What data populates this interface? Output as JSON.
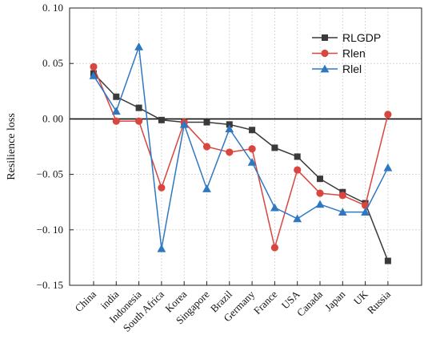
{
  "chart_data": {
    "type": "line",
    "ylabel": "Resilience loss",
    "xlabel": "",
    "ylim": [
      -0.15,
      0.1
    ],
    "yticks": [
      0.1,
      0.05,
      0.0,
      -0.05,
      -0.1,
      -0.15
    ],
    "ytick_labels": [
      "0. 10",
      "0. 05",
      "0. 00",
      "−0. 05",
      "−0. 10",
      "−0. 15"
    ],
    "grid": true,
    "zero_line": true,
    "legend_position": "top-right",
    "categories": [
      "China",
      "india",
      "Indonesia",
      "South Africa",
      "Korea",
      "Singapore",
      "Brazil",
      "Germany",
      "France",
      "USA",
      "Canada",
      "Japan",
      "UK",
      "Russia"
    ],
    "series": [
      {
        "name": "RLGDP",
        "color": "#3a3a3a",
        "marker": "square",
        "values": [
          0.041,
          0.02,
          0.01,
          -0.001,
          -0.003,
          -0.003,
          -0.005,
          -0.01,
          -0.026,
          -0.034,
          -0.054,
          -0.066,
          -0.076,
          -0.128
        ]
      },
      {
        "name": "Rlen",
        "color": "#d9453f",
        "marker": "circle",
        "values": [
          0.047,
          -0.002,
          -0.002,
          -0.062,
          -0.003,
          -0.025,
          -0.03,
          -0.027,
          -0.116,
          -0.046,
          -0.067,
          -0.069,
          -0.078,
          0.004
        ]
      },
      {
        "name": "Rlel",
        "color": "#2e78c2",
        "marker": "triangle",
        "values": [
          0.039,
          0.007,
          0.065,
          -0.117,
          -0.005,
          -0.063,
          -0.009,
          -0.039,
          -0.08,
          -0.09,
          -0.077,
          -0.084,
          -0.084,
          -0.044
        ]
      }
    ]
  }
}
